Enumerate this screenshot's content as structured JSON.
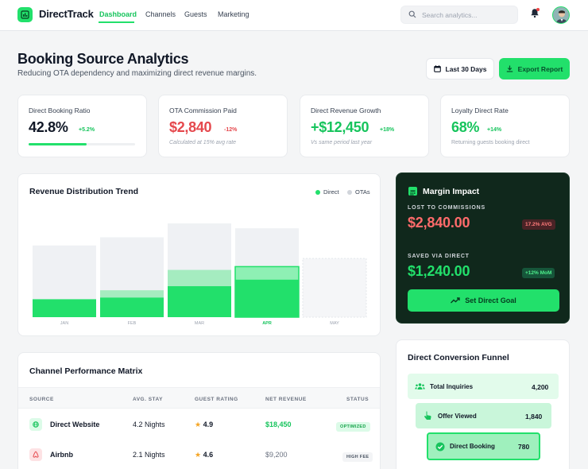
{
  "app": {
    "name": "DirectTrack"
  },
  "nav": {
    "links": [
      {
        "label": "Dashboard",
        "active": true
      },
      {
        "label": "Channels"
      },
      {
        "label": "Guests"
      },
      {
        "label": "Marketing"
      }
    ],
    "search_placeholder": "Search analytics...",
    "icons": [
      "search-icon",
      "bell-icon",
      "avatar"
    ]
  },
  "header": {
    "title": "Booking Source Analytics",
    "subtitle": "Reducing OTA dependency and maximizing direct revenue margins.",
    "range_label": "Last 30 Days",
    "export_label": "Export Report"
  },
  "kpis": [
    {
      "label": "Direct Booking Ratio",
      "value": "42.8%",
      "delta": "+5.2%",
      "progress_percent": 42.8
    },
    {
      "label": "OTA Commission Paid",
      "value": "$2,840",
      "delta": "-12%",
      "note": "Calculated at 15% avg rate"
    },
    {
      "label": "Direct Revenue Growth",
      "value": "+$12,450",
      "delta": "+18%",
      "note": "Vs same period last year"
    },
    {
      "label": "Loyalty Direct Rate",
      "value": "68%",
      "delta": "+14%",
      "note": "Returning guests booking direct"
    }
  ],
  "colors": {
    "accent": "#22e06b",
    "negative": "#e5484d",
    "dark_card": "#10281c"
  },
  "chart": {
    "title": "Revenue Distribution Trend",
    "legend": [
      {
        "name": "Direct",
        "color": "#22e06b"
      },
      {
        "name": "OTAs",
        "color": "#d1d5db"
      }
    ],
    "highlight": "APR"
  },
  "chart_data": {
    "type": "bar",
    "stacked": true,
    "categories": [
      "JAN",
      "FEB",
      "MAR",
      "APR",
      "MAY"
    ],
    "series": [
      {
        "name": "Direct",
        "values": [
          22,
          24,
          38,
          46,
          0
        ]
      },
      {
        "name": "OTAs",
        "values": [
          22,
          33,
          58,
          62,
          0
        ]
      }
    ],
    "track_levels": [
      88,
      98,
      115,
      109,
      72
    ],
    "ylim": [
      0,
      118
    ],
    "grid": false,
    "legend_position": "top-right"
  },
  "margin": {
    "title": "Margin Impact",
    "lost_label": "LOST TO COMMISSIONS",
    "lost_value": "$2,840.00",
    "lost_badge": "17.2% AVG",
    "saved_label": "SAVED VIA DIRECT",
    "saved_value": "$1,240.00",
    "saved_badge": "+12% MoM",
    "button": "Set Direct Goal"
  },
  "table": {
    "title": "Channel Performance Matrix",
    "columns": [
      "SOURCE",
      "AVG. STAY",
      "GUEST RATING",
      "NET REVENUE",
      "STATUS"
    ],
    "rows": [
      {
        "source": "Direct Website",
        "stay": "4.2 Nights",
        "rating": "4.9",
        "revenue": "$18,450",
        "status": "OPTIMIZED"
      },
      {
        "source": "Airbnb",
        "stay": "2.1 Nights",
        "rating": "4.6",
        "revenue": "$9,200",
        "status": "HIGH FEE"
      }
    ]
  },
  "funnel": {
    "title": "Direct Conversion Funnel",
    "steps": [
      {
        "label": "Total Inquiries",
        "value": "4,200"
      },
      {
        "label": "Offer Viewed",
        "value": "1,840"
      },
      {
        "label": "Direct Booking",
        "value": "780"
      }
    ]
  }
}
